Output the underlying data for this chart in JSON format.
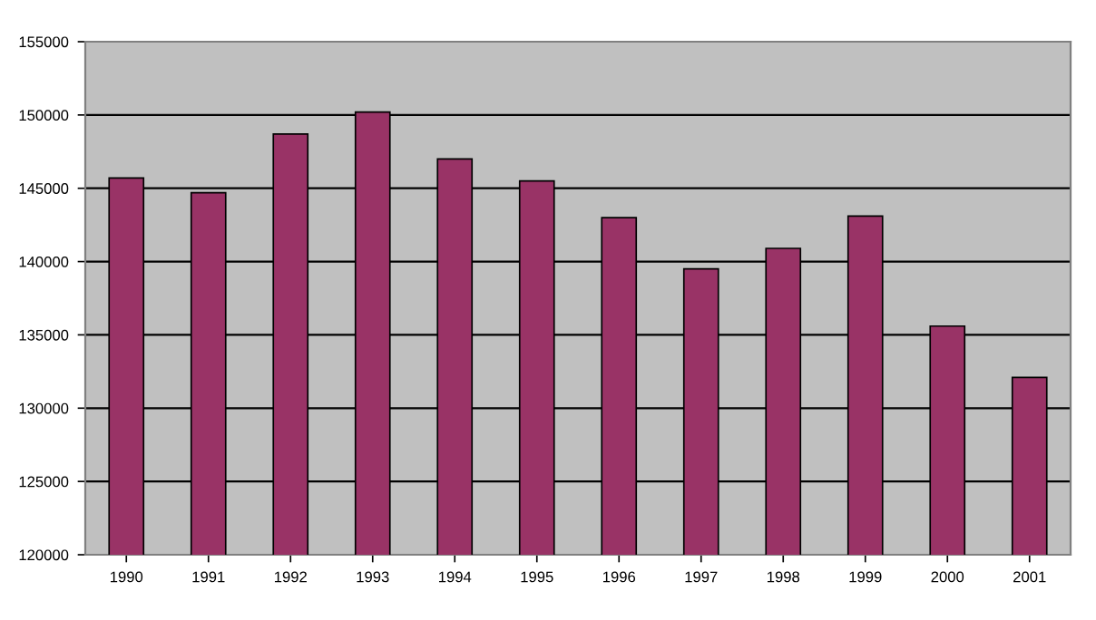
{
  "chart_data": {
    "type": "bar",
    "categories": [
      "1990",
      "1991",
      "1992",
      "1993",
      "1994",
      "1995",
      "1996",
      "1997",
      "1998",
      "1999",
      "2000",
      "2001"
    ],
    "values": [
      145700,
      144700,
      148700,
      150200,
      147000,
      145500,
      143000,
      139500,
      140900,
      143100,
      135600,
      132100
    ],
    "color": "#993366",
    "ylim": [
      120000,
      155000
    ],
    "yticks": [
      120000,
      125000,
      130000,
      135000,
      140000,
      145000,
      150000,
      155000
    ],
    "grid": "y",
    "legend": false
  }
}
